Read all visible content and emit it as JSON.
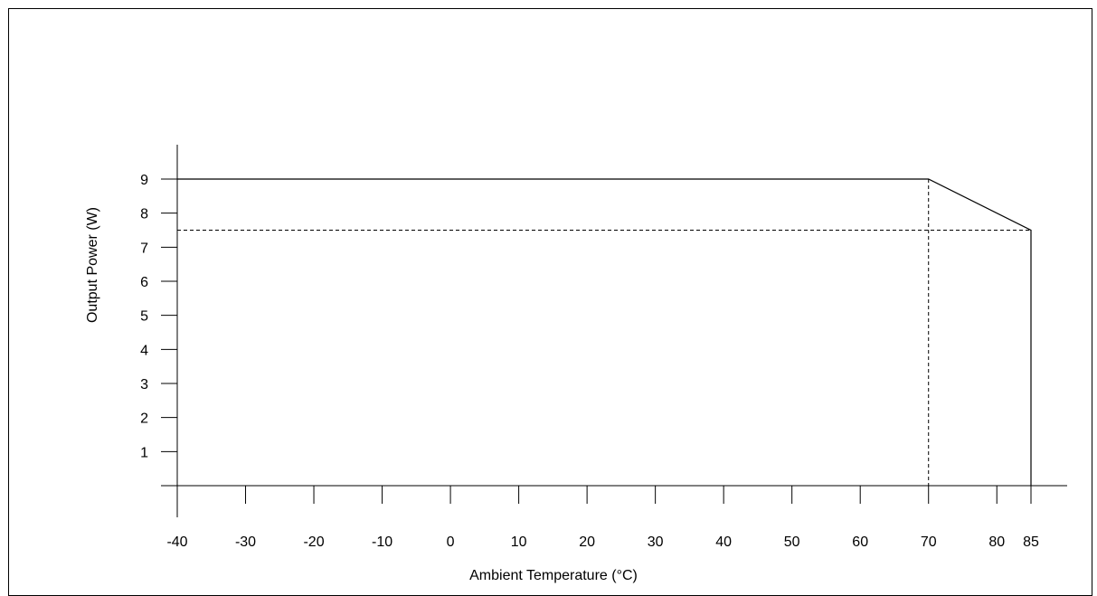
{
  "chart_data": {
    "type": "line",
    "title": "",
    "xlabel": "Ambient Temperature (°C)",
    "ylabel": "Output Power (W)",
    "xlim": [
      -40,
      85
    ],
    "ylim": [
      0,
      9
    ],
    "x_ticks": [
      -40,
      -30,
      -20,
      -10,
      0,
      10,
      20,
      30,
      40,
      50,
      60,
      70,
      80,
      85
    ],
    "y_ticks": [
      1,
      2,
      3,
      4,
      5,
      6,
      7,
      8,
      9
    ],
    "grid": false,
    "legend": "none",
    "series": [
      {
        "style": "solid",
        "color": "#000000",
        "points": [
          [
            -40,
            9
          ],
          [
            70,
            9
          ],
          [
            85,
            7.5
          ],
          [
            85,
            0
          ]
        ]
      }
    ],
    "reference_lines": [
      {
        "style": "dashed",
        "color": "#000000",
        "points": [
          [
            -40,
            7.5
          ],
          [
            85,
            7.5
          ]
        ]
      },
      {
        "style": "dashed",
        "color": "#000000",
        "points": [
          [
            70,
            9
          ],
          [
            70,
            0
          ]
        ]
      }
    ]
  }
}
